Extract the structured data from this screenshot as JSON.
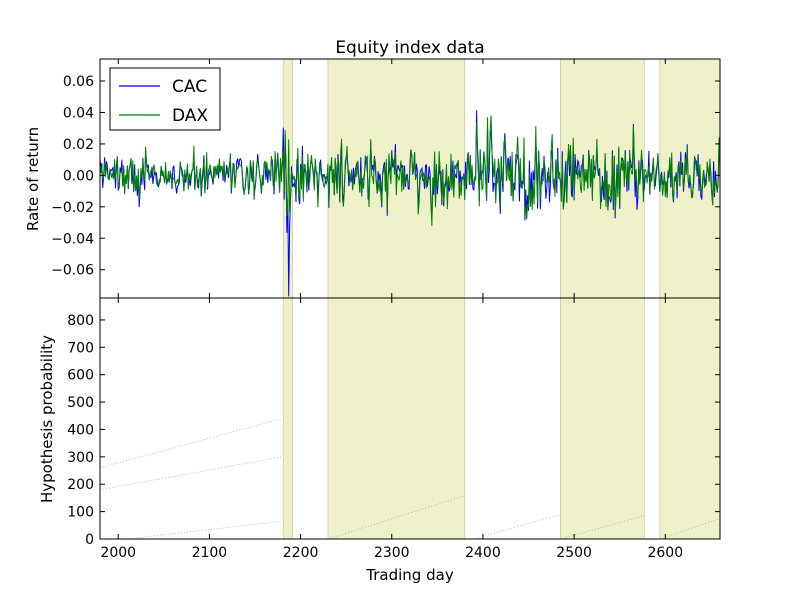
{
  "chart_data": [
    {
      "type": "line",
      "title": "Equity index data",
      "xlabel": "",
      "ylabel": "Rate of return",
      "xlim": [
        1980,
        2660
      ],
      "ylim": [
        -0.078,
        0.074
      ],
      "yticks": [
        -0.06,
        -0.04,
        -0.02,
        0.0,
        0.02,
        0.04,
        0.06
      ],
      "ytick_labels": [
        "−0.06",
        "−0.04",
        "−0.02",
        "0.00",
        "0.02",
        "0.04",
        "0.06"
      ],
      "legend": {
        "placement": "top-left",
        "entries": [
          "CAC",
          "DAX"
        ]
      },
      "series": [
        {
          "name": "CAC",
          "color": "#0000ff"
        },
        {
          "name": "DAX",
          "color": "#008000"
        }
      ],
      "x_range": [
        1980,
        2660
      ],
      "shaded_regions": [
        [
          2181,
          2191
        ],
        [
          2230,
          2380
        ],
        [
          2485,
          2577
        ],
        [
          2594,
          2660
        ]
      ],
      "shade_color": "#f0f0c8",
      "notes_visible_features": {
        "volatility_spike_x": 2187,
        "volatility_spike_y_min": -0.077
      }
    },
    {
      "type": "heatmap",
      "xlabel": "Trading day",
      "ylabel": "Hypothesis probability",
      "xlim": [
        1980,
        2660
      ],
      "ylim": [
        0,
        880
      ],
      "xticks": [
        2000,
        2100,
        2200,
        2300,
        2400,
        2500,
        2600
      ],
      "xtick_labels": [
        "2000",
        "2100",
        "2200",
        "2300",
        "2400",
        "2500",
        "2600"
      ],
      "yticks": [
        0,
        100,
        200,
        300,
        400,
        500,
        600,
        700,
        800
      ],
      "ytick_labels": [
        "0",
        "100",
        "200",
        "300",
        "400",
        "500",
        "600",
        "700",
        "800"
      ],
      "shaded_regions": [
        [
          2181,
          2191
        ],
        [
          2230,
          2380
        ],
        [
          2485,
          2577
        ],
        [
          2594,
          2660
        ]
      ],
      "shade_color": "#f0f0c8",
      "faint_trails": [
        {
          "x": [
            1980,
            2180
          ],
          "y": [
            260,
            440
          ]
        },
        {
          "x": [
            1980,
            2180
          ],
          "y": [
            180,
            300
          ]
        },
        {
          "x": [
            2010,
            2180
          ],
          "y": [
            0,
            65
          ]
        },
        {
          "x": [
            2230,
            2380
          ],
          "y": [
            0,
            158
          ]
        },
        {
          "x": [
            2390,
            2485
          ],
          "y": [
            0,
            90
          ]
        },
        {
          "x": [
            2485,
            2577
          ],
          "y": [
            0,
            85
          ]
        },
        {
          "x": [
            2594,
            2660
          ],
          "y": [
            0,
            75
          ]
        }
      ]
    }
  ]
}
